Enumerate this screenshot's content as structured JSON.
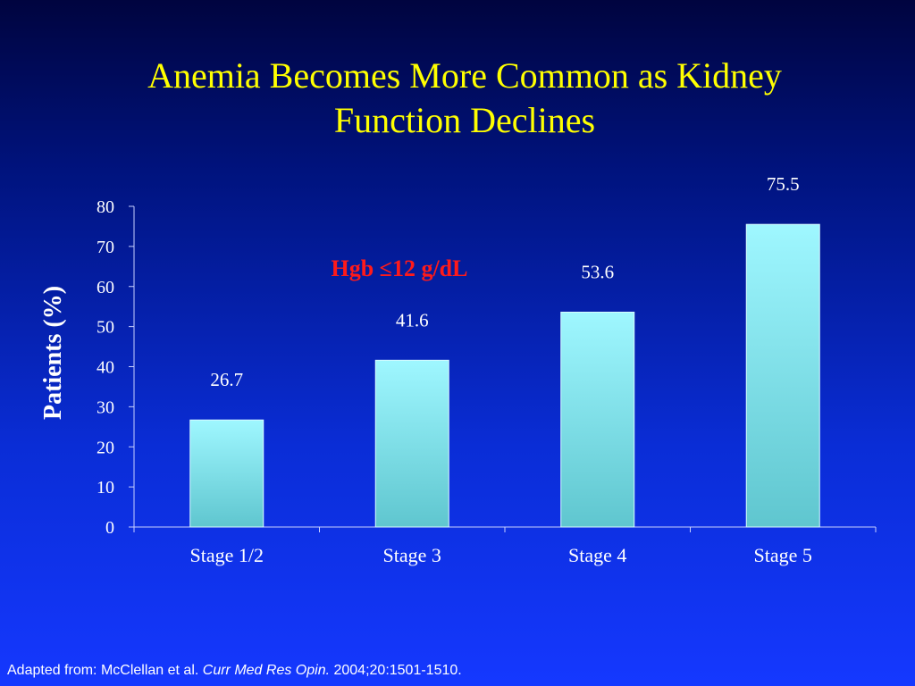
{
  "slide": {
    "title_line1": "Anemia Becomes More Common as Kidney",
    "title_line2": "Function Declines"
  },
  "colors": {
    "title": "#ffff00",
    "annotation": "#ff1a1a",
    "bar_top": "#9ff7ff",
    "bar_bottom": "#5fc6cf",
    "text": "#ffffff"
  },
  "chart_data": {
    "type": "bar",
    "categories": [
      "Stage 1/2",
      "Stage 3",
      "Stage 4",
      "Stage 5"
    ],
    "values": [
      26.7,
      41.6,
      53.6,
      75.5
    ],
    "value_labels": [
      "26.7",
      "41.6",
      "53.6",
      "75.5"
    ],
    "ylabel": "Patients (%)",
    "ylim": [
      0,
      80
    ],
    "yticks": [
      "0",
      "10",
      "20",
      "30",
      "40",
      "50",
      "60",
      "70",
      "80"
    ],
    "annotation": "Hgb ≤12 g/dL",
    "grid": false,
    "legend": "none"
  },
  "footnote": {
    "prefix": "Adapted from: McClellan et al. ",
    "journal": "Curr Med Res Opin.",
    "suffix": " 2004;20:1501-1510."
  }
}
